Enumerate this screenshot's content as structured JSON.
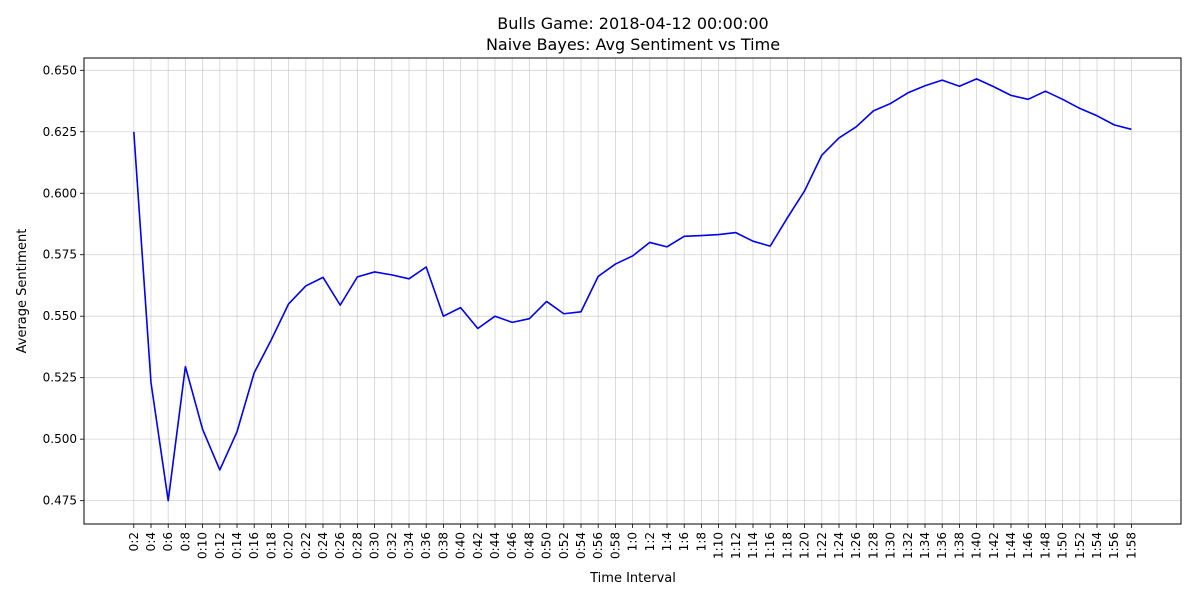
{
  "chart_data": {
    "type": "line",
    "title": "Bulls Game: 2018-04-12 00:00:00",
    "subtitle": "Naive Bayes: Avg Sentiment vs Time",
    "xlabel": "Time Interval",
    "ylabel": "Average Sentiment",
    "ylim": [
      0.4655,
      0.655
    ],
    "yticks": [
      0.475,
      0.5,
      0.525,
      0.55,
      0.575,
      0.6,
      0.625,
      0.65
    ],
    "ytick_labels": [
      "0.475",
      "0.500",
      "0.525",
      "0.550",
      "0.575",
      "0.600",
      "0.625",
      "0.650"
    ],
    "grid": true,
    "color": "#0000ee",
    "categories": [
      "0:2",
      "0:4",
      "0:6",
      "0:8",
      "0:10",
      "0:12",
      "0:14",
      "0:16",
      "0:18",
      "0:20",
      "0:22",
      "0:24",
      "0:26",
      "0:28",
      "0:30",
      "0:32",
      "0:34",
      "0:36",
      "0:38",
      "0:40",
      "0:42",
      "0:44",
      "0:46",
      "0:48",
      "0:50",
      "0:52",
      "0:54",
      "0:56",
      "0:58",
      "1:0",
      "1:2",
      "1:4",
      "1:6",
      "1:8",
      "1:10",
      "1:12",
      "1:14",
      "1:16",
      "1:18",
      "1:20",
      "1:22",
      "1:24",
      "1:26",
      "1:28",
      "1:30",
      "1:32",
      "1:34",
      "1:36",
      "1:38",
      "1:40",
      "1:42",
      "1:44",
      "1:46",
      "1:48",
      "1:50",
      "1:52",
      "1:54",
      "1:56",
      "1:58"
    ],
    "values": [
      0.625,
      0.523,
      0.475,
      0.5295,
      0.504,
      0.4875,
      0.503,
      0.527,
      0.5405,
      0.555,
      0.5623,
      0.5658,
      0.5545,
      0.566,
      0.568,
      0.5668,
      0.5652,
      0.57,
      0.55,
      0.5535,
      0.545,
      0.55,
      0.5475,
      0.549,
      0.556,
      0.551,
      0.5518,
      0.5662,
      0.5712,
      0.5745,
      0.58,
      0.5782,
      0.5825,
      0.5828,
      0.5832,
      0.584,
      0.5805,
      0.5785,
      0.59,
      0.601,
      0.6155,
      0.6225,
      0.627,
      0.6335,
      0.6365,
      0.6408,
      0.6437,
      0.646,
      0.6435,
      0.6465,
      0.6433,
      0.6398,
      0.6382,
      0.6415,
      0.6382,
      0.6345,
      0.6315,
      0.6278,
      0.626
    ]
  }
}
